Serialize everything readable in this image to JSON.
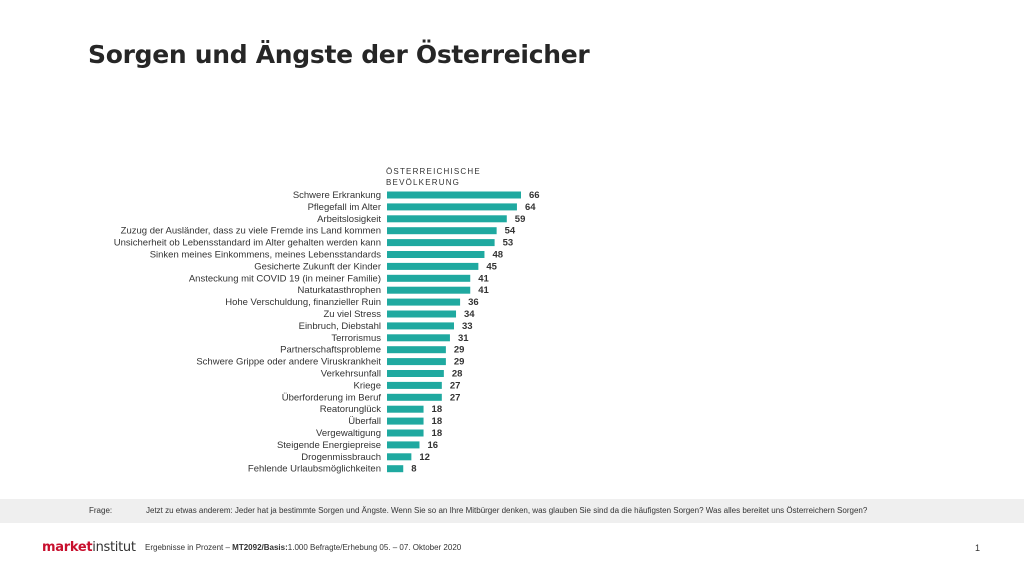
{
  "page": {
    "title": "Sorgen und Ängste der Österreicher"
  },
  "chart_data": {
    "type": "bar",
    "orientation": "horizontal",
    "series_header": "ÖSTERREICHISCHE BEVÖLKERUNG",
    "categories": [
      "Schwere Erkrankung",
      "Pflegefall im Alter",
      "Arbeitslosigkeit",
      "Zuzug der Ausländer, dass zu viele Fremde ins Land kommen",
      "Unsicherheit ob Lebensstandard im Alter gehalten werden kann",
      "Sinken meines Einkommens, meines Lebensstandards",
      "Gesicherte Zukunft der Kinder",
      "Ansteckung mit COVID 19 (in meiner Familie)",
      "Naturkatasthrophen",
      "Hohe Verschuldung, finanzieller Ruin",
      "Zu viel Stress",
      "Einbruch, Diebstahl",
      "Terrorismus",
      "Partnerschaftsprobleme",
      "Schwere Grippe oder andere Viruskrankheit",
      "Verkehrsunfall",
      "Kriege",
      "Überforderung im Beruf",
      "Reatorunglück",
      "Überfall",
      "Vergewaltigung",
      "Steigende Energiepreise",
      "Drogenmissbrauch",
      "Fehlende Urlaubsmöglichkeiten"
    ],
    "values": [
      66,
      64,
      59,
      54,
      53,
      48,
      45,
      41,
      41,
      36,
      34,
      33,
      31,
      29,
      29,
      28,
      27,
      27,
      18,
      18,
      18,
      16,
      12,
      8
    ],
    "xlim": [
      0,
      66
    ],
    "grid": false,
    "bar_color": "#1fa9a0"
  },
  "question": {
    "label": "Frage:",
    "text": "Jetzt zu etwas anderem: Jeder hat ja bestimmte Sorgen und Ängste. Wenn Sie so an Ihre Mitbürger denken, was glauben Sie sind da die häufigsten Sorgen? Was alles bereitet uns Österreichern Sorgen?"
  },
  "footer": {
    "logo_part1": "market",
    "logo_part2": "institut",
    "note_prefix": "Ergebnisse in Prozent –",
    "note_bold": "MT2092/Basis:",
    "note_suffix": "1.000 Befragte/Erhebung 05. – 07. Oktober 2020",
    "page_number": "1"
  }
}
